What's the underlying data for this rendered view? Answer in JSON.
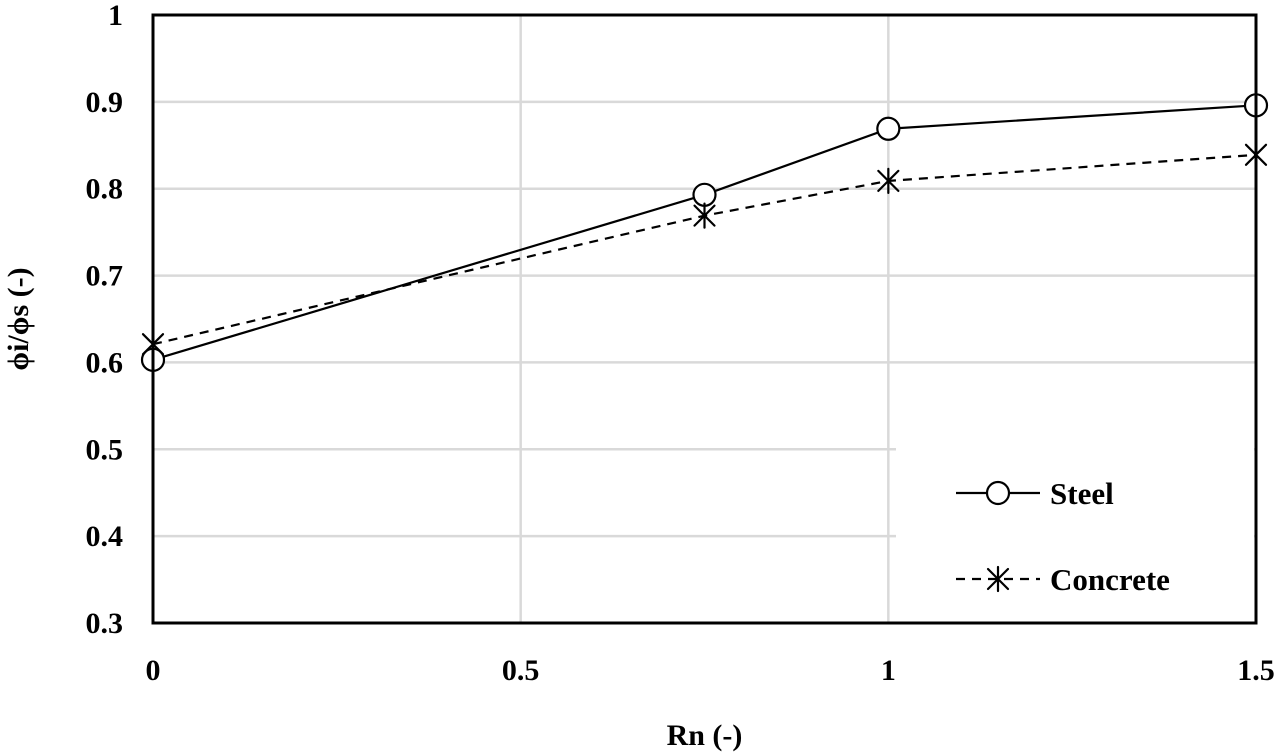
{
  "chart_data": {
    "type": "line",
    "xlabel": "Rn (-)",
    "ylabel": "ϕi/ϕs (-)",
    "xlim": [
      0,
      1.5
    ],
    "ylim": [
      0.3,
      1
    ],
    "x_ticks": [
      "0",
      "0.5",
      "1",
      "1.5"
    ],
    "y_ticks": [
      "0.3",
      "0.4",
      "0.5",
      "0.6",
      "0.7",
      "0.8",
      "0.9",
      "1"
    ],
    "grid": true,
    "legend_position": "bottom-right",
    "series": [
      {
        "name": "Steel",
        "marker": "open-circle",
        "line_style": "solid",
        "color": "#000000",
        "x": [
          0,
          0.75,
          1,
          1.5
        ],
        "y": [
          0.603,
          0.793,
          0.869,
          0.896
        ]
      },
      {
        "name": "Concrete",
        "marker": "asterisk",
        "line_style": "dashed",
        "color": "#000000",
        "x": [
          0,
          0.75,
          1,
          1.5
        ],
        "y": [
          0.621,
          0.769,
          0.809,
          0.839
        ]
      }
    ]
  }
}
